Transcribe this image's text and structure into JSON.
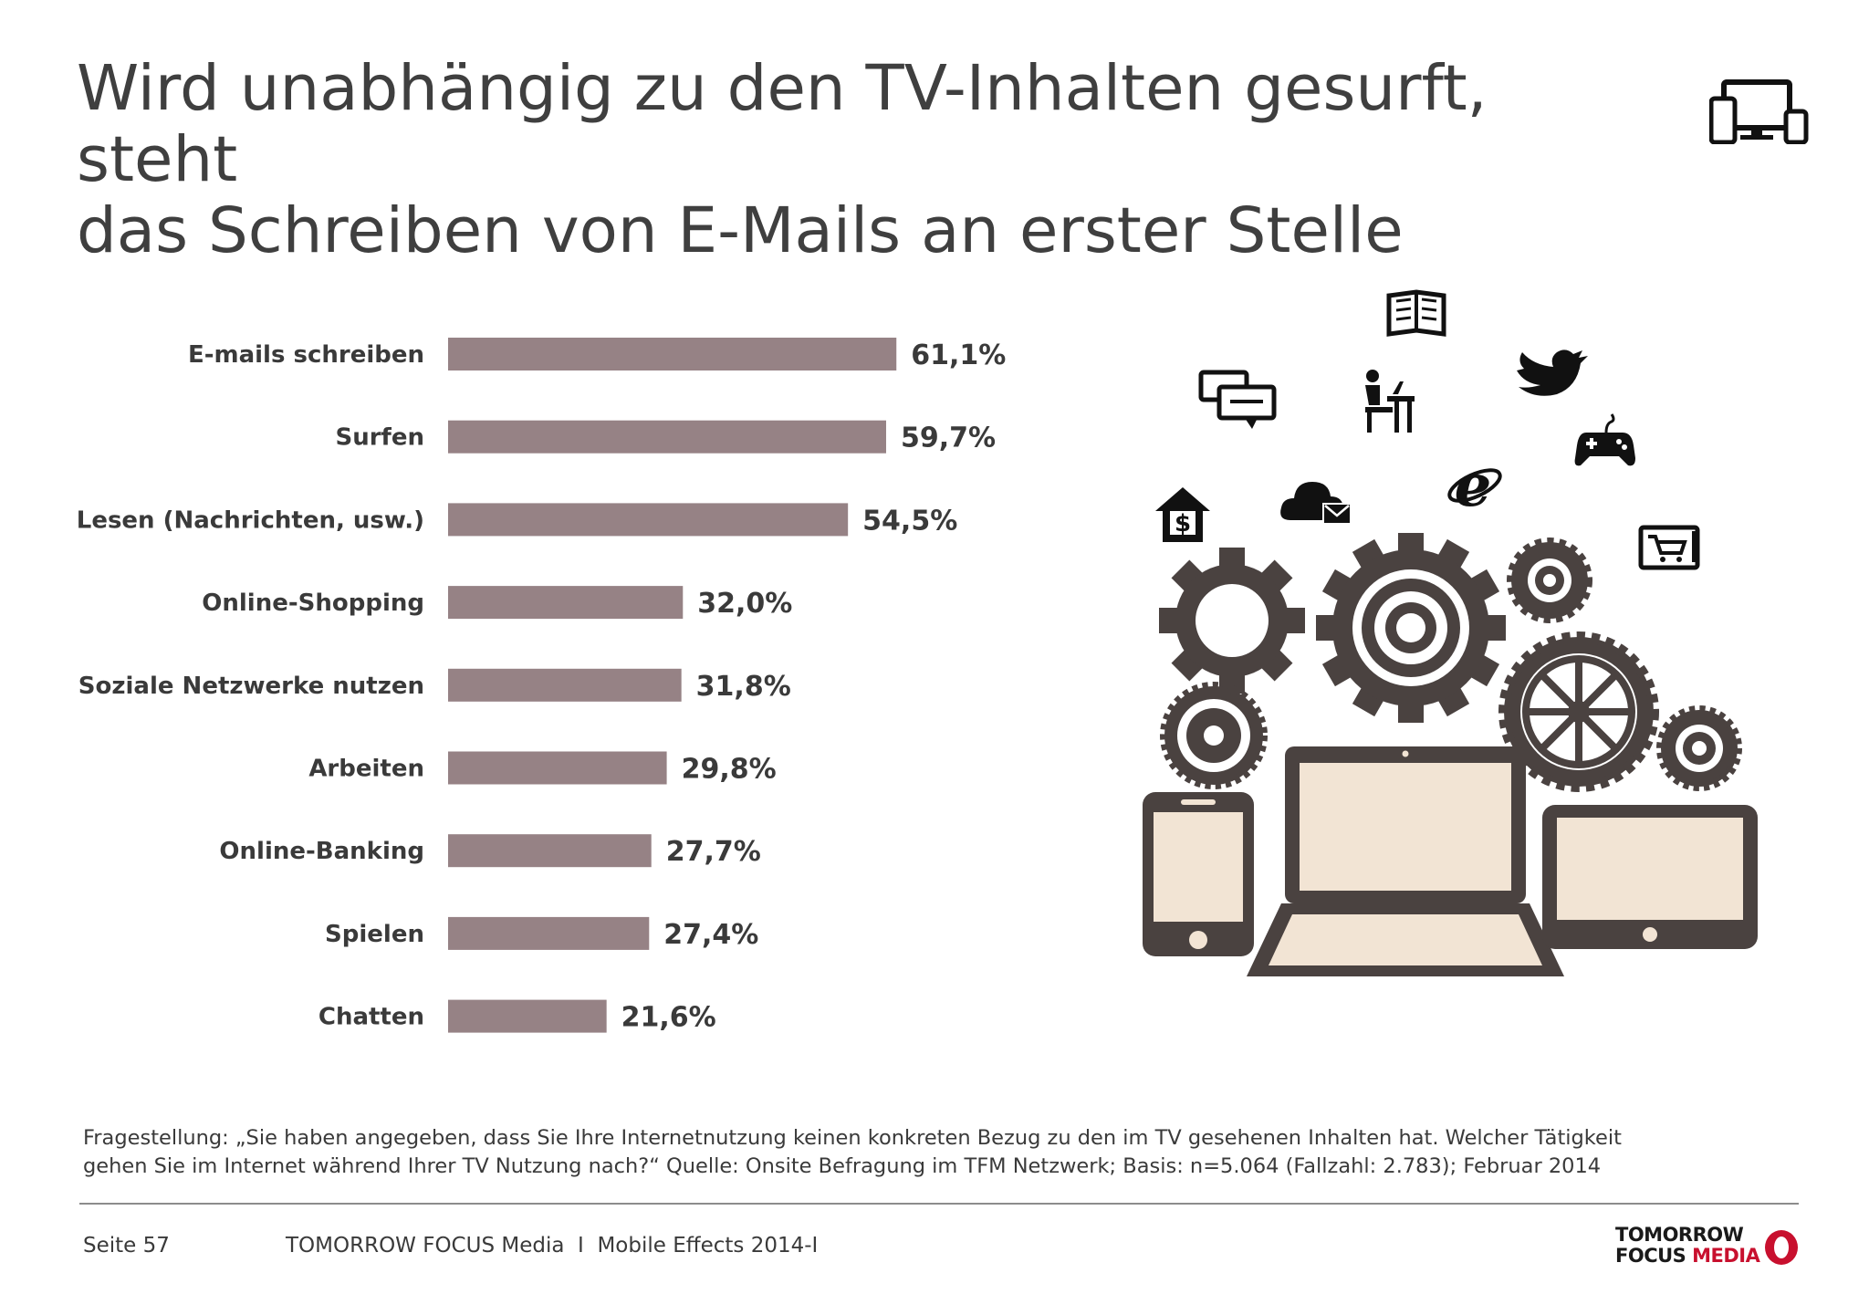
{
  "header": {
    "title_lines": [
      "Wird unabhängig zu den TV-Inhalten gesurft, steht",
      "das Schreiben von E-Mails an erster Stelle"
    ]
  },
  "chart_data": {
    "type": "bar",
    "orientation": "horizontal",
    "categories": [
      "E-mails schreiben",
      "Surfen",
      "Lesen (Nachrichten, usw.)",
      "Online-Shopping",
      "Soziale Netzwerke nutzen",
      "Arbeiten",
      "Online-Banking",
      "Spielen",
      "Chatten"
    ],
    "values": [
      61.1,
      59.7,
      54.5,
      32.0,
      31.8,
      29.8,
      27.7,
      27.4,
      21.6
    ],
    "value_labels": [
      "61,1%",
      "59,7%",
      "54,5%",
      "32,0%",
      "31,8%",
      "29,8%",
      "27,7%",
      "27,4%",
      "21,6%"
    ],
    "unit": "%",
    "title": "",
    "xlabel": "",
    "ylabel": "",
    "xlim": [
      0,
      100
    ],
    "grid": false,
    "legend": "none",
    "bar_color": "#968285"
  },
  "footnote": {
    "line1": "Fragestellung: „Sie haben angegeben, dass Sie Ihre Internetnutzung keinen konkreten Bezug zu den im TV gesehenen Inhalten hat. Welcher Tätigkeit",
    "line2": "gehen Sie im Internet während Ihrer TV Nutzung nach?“ Quelle: Onsite Befragung im TFM Netzwerk; Basis: n=5.064 (Fallzahl: 2.783); Februar 2014"
  },
  "footer": {
    "page": "Seite 57",
    "publication": "TOMORROW FOCUS Media  I  Mobile Effects 2014-I",
    "logo_line1": "TOMORROW",
    "logo_line2a": "FOCUS",
    "logo_line2b": "MEDIA"
  },
  "icons": {
    "header_icon": "devices-icon",
    "illustration": [
      "book-icon",
      "chat-icon",
      "person-at-desk-icon",
      "twitter-bird-icon",
      "gamepad-icon",
      "house-dollar-icon",
      "cloud-mail-icon",
      "internet-explorer-icon",
      "shopping-cart-icon",
      "gear-icon",
      "smartphone-icon",
      "laptop-icon",
      "tablet-icon"
    ]
  },
  "colors": {
    "bar": "#968285",
    "text": "#3a3a3a",
    "illustration_dark": "#4a4240",
    "screen": "#f2e4d4",
    "logo_red": "#c8102e"
  }
}
